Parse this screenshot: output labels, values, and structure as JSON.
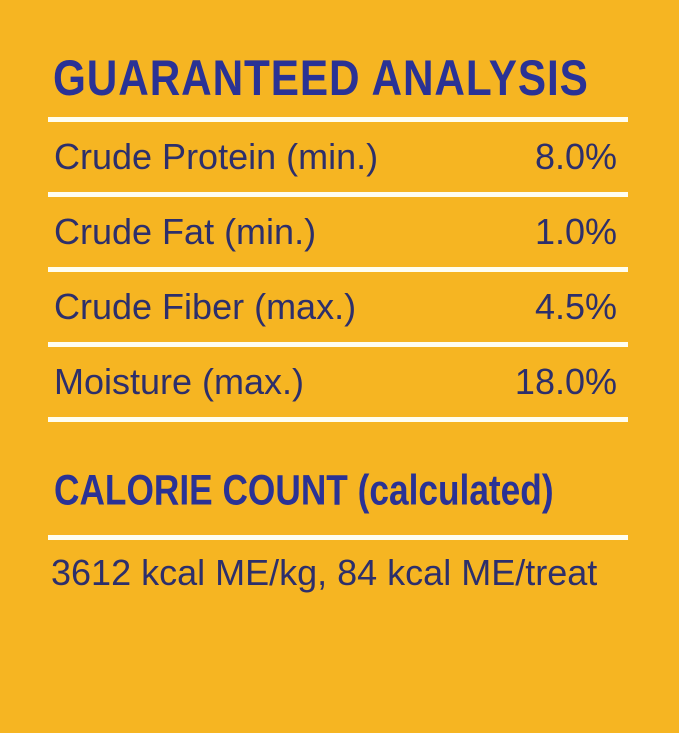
{
  "label": {
    "colors": {
      "background": "#F6B522",
      "heading_text": "#2A3295",
      "body_text": "#2D2F6B",
      "divider": "#FFFEF0"
    },
    "guaranteed_analysis": {
      "title": "GUARANTEED ANALYSIS",
      "rows": [
        {
          "name": "Crude Protein (min.)",
          "value": "8.0%"
        },
        {
          "name": "Crude Fat (min.)",
          "value": "1.0%"
        },
        {
          "name": "Crude Fiber (max.)",
          "value": "4.5%"
        },
        {
          "name": "Moisture (max.)",
          "value": "18.0%"
        }
      ]
    },
    "calorie_count": {
      "title": "CALORIE COUNT",
      "title_suffix": " (calculated)",
      "value": "3612 kcal ME/kg, 84 kcal ME/treat"
    }
  }
}
